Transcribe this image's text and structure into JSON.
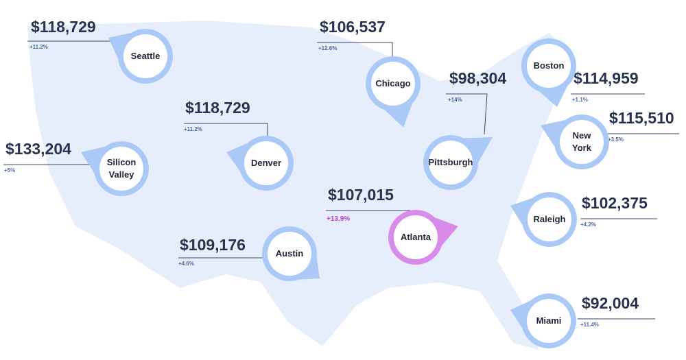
{
  "cities": [
    {
      "name": "Seattle",
      "salary": "$118,729",
      "change": "+11.2%"
    },
    {
      "name": "Chicago",
      "salary": "$106,537",
      "change": "+12.6%"
    },
    {
      "name": "Boston",
      "salary": "$114,959",
      "change": "+1.1%"
    },
    {
      "name": "Pittsburgh",
      "salary": "$98,304",
      "change": "+14%"
    },
    {
      "name": "New York",
      "salary": "$115,510",
      "change": "+3.5%"
    },
    {
      "name": "Denver",
      "salary": "$118,729",
      "change": "+11.2%"
    },
    {
      "name": "Silicon Valley",
      "salary": "$133,204",
      "change": "+5%"
    },
    {
      "name": "Atlanta",
      "salary": "$107,015",
      "change": "+13.9%"
    },
    {
      "name": "Raleigh",
      "salary": "$102,375",
      "change": "+4.2%"
    },
    {
      "name": "Austin",
      "salary": "$109,176",
      "change": "+4.6%"
    },
    {
      "name": "Miami",
      "salary": "$92,004",
      "change": "+11.4%"
    }
  ]
}
